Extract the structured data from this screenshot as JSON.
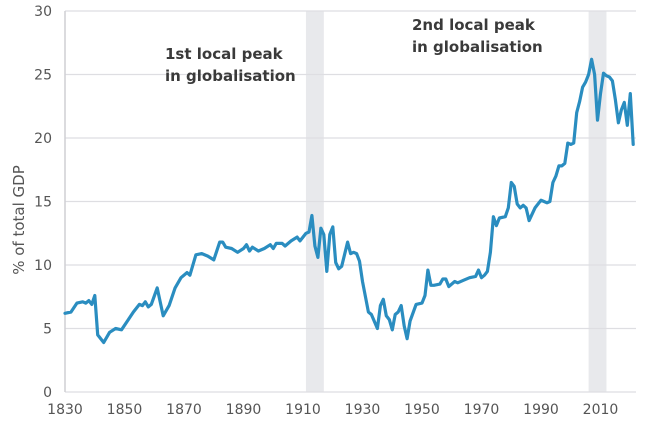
{
  "chart_data": {
    "type": "line",
    "title": "",
    "xlabel": "",
    "ylabel": "% of total GDP",
    "xlim": [
      1830,
      2022
    ],
    "ylim": [
      0,
      30
    ],
    "grid": "horizontal",
    "line_color": "#2a8dc0",
    "band_color": "#e8e9ec",
    "x_ticks": [
      "1830",
      "1850",
      "1870",
      "1890",
      "1910",
      "1930",
      "1950",
      "1970",
      "1990",
      "2010"
    ],
    "y_ticks": [
      "0",
      "5",
      "10",
      "15",
      "20",
      "25",
      "30"
    ],
    "shaded_periods": [
      [
        1911,
        1917
      ],
      [
        2006,
        2012
      ]
    ],
    "annotations": [
      {
        "lines": [
          "1st local peak",
          "in globalisation"
        ],
        "period": 0
      },
      {
        "lines": [
          "2nd local peak",
          "in globalisation"
        ],
        "period": 1
      }
    ],
    "x": [
      1830,
      1832,
      1834,
      1836,
      1837,
      1838,
      1839,
      1840,
      1841,
      1843,
      1845,
      1847,
      1849,
      1851,
      1853,
      1855,
      1856,
      1857,
      1858,
      1859,
      1861,
      1863,
      1865,
      1867,
      1869,
      1871,
      1872,
      1874,
      1876,
      1878,
      1880,
      1882,
      1883,
      1884,
      1886,
      1888,
      1890,
      1891,
      1892,
      1893,
      1895,
      1897,
      1899,
      1900,
      1901,
      1903,
      1904,
      1906,
      1908,
      1909,
      1911,
      1912,
      1913,
      1914,
      1915,
      1916,
      1917,
      1918,
      1919,
      1920,
      1921,
      1922,
      1923,
      1925,
      1926,
      1927,
      1928,
      1929,
      1930,
      1932,
      1933,
      1935,
      1936,
      1937,
      1938,
      1939,
      1940,
      1941,
      1942,
      1943,
      1944,
      1945,
      1946,
      1948,
      1950,
      1951,
      1952,
      1953,
      1954,
      1956,
      1957,
      1958,
      1959,
      1961,
      1962,
      1964,
      1966,
      1968,
      1969,
      1970,
      1971,
      1972,
      1973,
      1974,
      1975,
      1976,
      1978,
      1979,
      1980,
      1981,
      1982,
      1983,
      1984,
      1985,
      1986,
      1988,
      1990,
      1991,
      1992,
      1993,
      1994,
      1995,
      1996,
      1997,
      1998,
      1999,
      2000,
      2001,
      2002,
      2003,
      2004,
      2005,
      2006,
      2007,
      2008,
      2009,
      2010,
      2011,
      2012,
      2013,
      2014,
      2015,
      2016,
      2017,
      2018,
      2019,
      2020,
      2021
    ],
    "y": [
      6.2,
      6.3,
      7.0,
      7.1,
      7.0,
      7.2,
      6.9,
      7.6,
      4.5,
      3.9,
      4.7,
      5.0,
      4.9,
      5.6,
      6.3,
      6.9,
      6.8,
      7.1,
      6.7,
      6.9,
      8.2,
      6.0,
      6.8,
      8.2,
      9.0,
      9.4,
      9.2,
      10.8,
      10.9,
      10.7,
      10.4,
      11.8,
      11.8,
      11.4,
      11.3,
      11.0,
      11.3,
      11.6,
      11.1,
      11.4,
      11.1,
      11.3,
      11.6,
      11.3,
      11.7,
      11.7,
      11.5,
      11.9,
      12.2,
      11.9,
      12.5,
      12.6,
      13.9,
      11.5,
      10.6,
      12.9,
      12.4,
      9.5,
      12.4,
      13.0,
      10.2,
      9.7,
      9.9,
      11.8,
      10.9,
      11.0,
      10.9,
      10.3,
      8.7,
      6.3,
      6.1,
      5.0,
      6.8,
      7.3,
      6.0,
      5.7,
      4.9,
      6.1,
      6.3,
      6.8,
      5.2,
      4.2,
      5.6,
      6.9,
      7.0,
      7.6,
      9.6,
      8.4,
      8.4,
      8.5,
      8.9,
      8.9,
      8.3,
      8.7,
      8.6,
      8.8,
      9.0,
      9.1,
      9.6,
      9.0,
      9.2,
      9.5,
      11.0,
      13.8,
      13.1,
      13.7,
      13.8,
      14.5,
      16.5,
      16.2,
      14.8,
      14.5,
      14.7,
      14.5,
      13.5,
      14.5,
      15.1,
      15.0,
      14.9,
      15.0,
      16.5,
      17.0,
      17.8,
      17.8,
      18.0,
      19.6,
      19.5,
      19.6,
      22.0,
      22.9,
      24.0,
      24.4,
      25.0,
      26.2,
      25.0,
      21.4,
      23.5,
      25.1,
      24.9,
      24.8,
      24.5,
      23.0,
      21.2,
      22.2,
      22.8,
      21.0,
      23.5,
      19.5
    ]
  }
}
